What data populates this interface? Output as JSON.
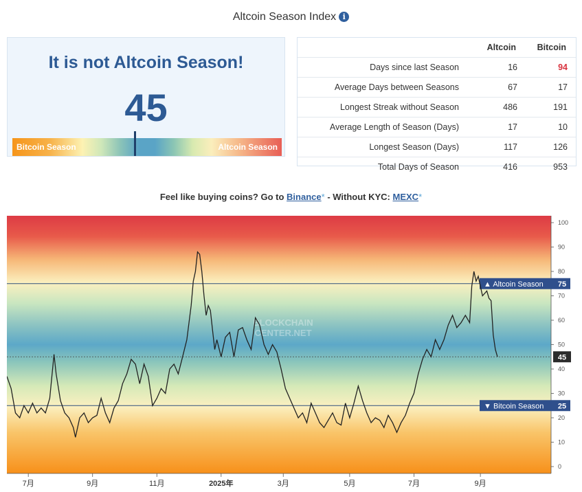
{
  "header": {
    "title": "Altcoin Season Index",
    "info_icon": "info-icon"
  },
  "summary": {
    "status": "It is not Altcoin Season!",
    "index_value": "45",
    "index_numeric": 45,
    "gauge_left_label": "Bitcoin Season",
    "gauge_right_label": "Altcoin Season"
  },
  "stats": {
    "columns": [
      "Altcoin",
      "Bitcoin"
    ],
    "rows": [
      {
        "label": "Days since last Season",
        "altcoin": "16",
        "bitcoin": "94"
      },
      {
        "label": "Average Days between Seasons",
        "altcoin": "67",
        "bitcoin": "17"
      },
      {
        "label": "Longest Streak without Season",
        "altcoin": "486",
        "bitcoin": "191"
      },
      {
        "label": "Average Length of Season (Days)",
        "altcoin": "17",
        "bitcoin": "10"
      },
      {
        "label": "Longest Season (Days)",
        "altcoin": "117",
        "bitcoin": "126"
      },
      {
        "label": "Total Days of Season",
        "altcoin": "416",
        "bitcoin": "953"
      }
    ]
  },
  "promo": {
    "prefix": "Feel like buying coins? Go to",
    "binance": "Binance",
    "star": "*",
    "middle": "- Without KYC:",
    "mexc": "MEXC"
  },
  "chart_data": {
    "type": "line",
    "title": "Altcoin Season Index",
    "ylim": [
      0,
      100
    ],
    "y_ticks": [
      "100",
      "90",
      "80",
      "70",
      "60",
      "50",
      "40",
      "30",
      "20",
      "10",
      "0"
    ],
    "x_ticks": [
      {
        "label": "7月",
        "x": 20
      },
      {
        "label": "9月",
        "x": 80
      },
      {
        "label": "11月",
        "x": 140
      },
      {
        "label": "2025年",
        "x": 200
      },
      {
        "label": "3月",
        "x": 258
      },
      {
        "label": "5月",
        "x": 320
      },
      {
        "label": "7月",
        "x": 380
      },
      {
        "label": "9月",
        "x": 442
      }
    ],
    "x_range": [
      0,
      508
    ],
    "thresholds": [
      {
        "label": "Altcoin Season",
        "value": 75,
        "value_label": "75",
        "arrow": "▲"
      },
      {
        "label": "Bitcoin Season",
        "value": 25,
        "value_label": "25",
        "arrow": "▼"
      }
    ],
    "current": {
      "value": 45,
      "label": "45"
    },
    "watermark": [
      "BLOCKCHAIN",
      "CENTER.NET"
    ],
    "series": [
      {
        "name": "Altcoin Season Index",
        "points": [
          [
            0,
            37
          ],
          [
            4,
            32
          ],
          [
            8,
            22
          ],
          [
            12,
            20
          ],
          [
            16,
            25
          ],
          [
            20,
            22
          ],
          [
            24,
            26
          ],
          [
            28,
            22
          ],
          [
            32,
            24
          ],
          [
            36,
            22
          ],
          [
            40,
            28
          ],
          [
            44,
            46
          ],
          [
            46,
            38
          ],
          [
            50,
            27
          ],
          [
            54,
            22
          ],
          [
            58,
            20
          ],
          [
            62,
            16
          ],
          [
            64,
            12
          ],
          [
            68,
            20
          ],
          [
            72,
            22
          ],
          [
            76,
            18
          ],
          [
            80,
            20
          ],
          [
            84,
            21
          ],
          [
            88,
            28
          ],
          [
            92,
            22
          ],
          [
            96,
            18
          ],
          [
            100,
            24
          ],
          [
            104,
            27
          ],
          [
            108,
            34
          ],
          [
            112,
            38
          ],
          [
            116,
            44
          ],
          [
            120,
            42
          ],
          [
            124,
            34
          ],
          [
            128,
            42
          ],
          [
            132,
            37
          ],
          [
            136,
            25
          ],
          [
            140,
            28
          ],
          [
            144,
            32
          ],
          [
            148,
            30
          ],
          [
            152,
            40
          ],
          [
            156,
            42
          ],
          [
            160,
            38
          ],
          [
            164,
            45
          ],
          [
            168,
            52
          ],
          [
            172,
            66
          ],
          [
            174,
            76
          ],
          [
            176,
            80
          ],
          [
            178,
            88
          ],
          [
            180,
            87
          ],
          [
            182,
            80
          ],
          [
            184,
            70
          ],
          [
            186,
            62
          ],
          [
            188,
            66
          ],
          [
            190,
            64
          ],
          [
            192,
            56
          ],
          [
            194,
            48
          ],
          [
            196,
            52
          ],
          [
            200,
            45
          ],
          [
            204,
            53
          ],
          [
            208,
            55
          ],
          [
            212,
            45
          ],
          [
            216,
            56
          ],
          [
            220,
            57
          ],
          [
            224,
            52
          ],
          [
            228,
            48
          ],
          [
            232,
            61
          ],
          [
            236,
            58
          ],
          [
            240,
            50
          ],
          [
            244,
            46
          ],
          [
            248,
            50
          ],
          [
            252,
            47
          ],
          [
            256,
            40
          ],
          [
            260,
            32
          ],
          [
            264,
            28
          ],
          [
            268,
            24
          ],
          [
            272,
            20
          ],
          [
            276,
            22
          ],
          [
            280,
            18
          ],
          [
            284,
            26
          ],
          [
            288,
            22
          ],
          [
            292,
            18
          ],
          [
            296,
            16
          ],
          [
            300,
            19
          ],
          [
            304,
            22
          ],
          [
            308,
            18
          ],
          [
            312,
            17
          ],
          [
            316,
            26
          ],
          [
            320,
            20
          ],
          [
            324,
            26
          ],
          [
            328,
            33
          ],
          [
            332,
            27
          ],
          [
            336,
            22
          ],
          [
            340,
            18
          ],
          [
            344,
            20
          ],
          [
            348,
            19
          ],
          [
            352,
            16
          ],
          [
            356,
            21
          ],
          [
            360,
            18
          ],
          [
            364,
            14
          ],
          [
            368,
            18
          ],
          [
            372,
            21
          ],
          [
            376,
            26
          ],
          [
            380,
            30
          ],
          [
            384,
            38
          ],
          [
            388,
            44
          ],
          [
            392,
            48
          ],
          [
            396,
            45
          ],
          [
            400,
            52
          ],
          [
            404,
            48
          ],
          [
            408,
            52
          ],
          [
            412,
            58
          ],
          [
            416,
            62
          ],
          [
            420,
            57
          ],
          [
            424,
            59
          ],
          [
            428,
            62
          ],
          [
            432,
            59
          ],
          [
            434,
            74
          ],
          [
            436,
            80
          ],
          [
            438,
            76
          ],
          [
            440,
            78
          ],
          [
            444,
            70
          ],
          [
            448,
            72
          ],
          [
            450,
            69
          ],
          [
            452,
            68
          ],
          [
            454,
            54
          ],
          [
            456,
            48
          ],
          [
            458,
            45
          ]
        ]
      }
    ]
  }
}
